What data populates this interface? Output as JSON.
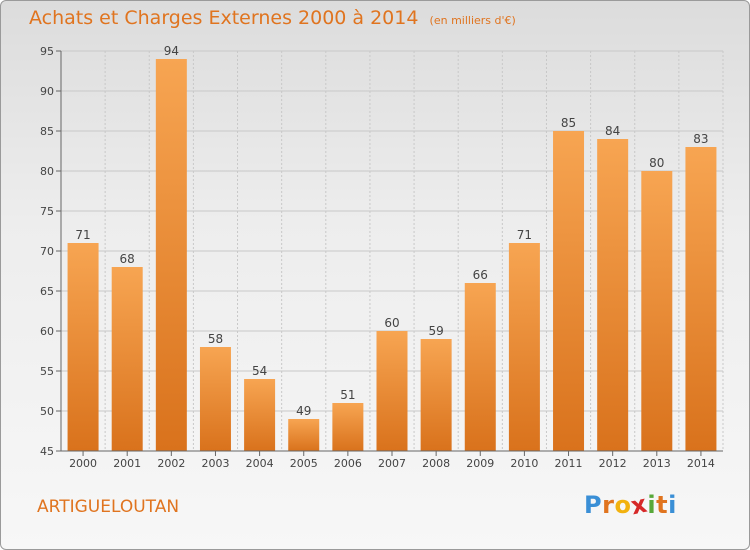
{
  "title": "Achats et Charges Externes 2000 à 2014",
  "unit": "(en milliers d'€)",
  "commune": "ARTIGUELOUTAN",
  "logo": {
    "letters": [
      "P",
      "r",
      "o",
      "x",
      "i",
      "t",
      "i"
    ],
    "colors": [
      "#3a8fd6",
      "#e0741f",
      "#f2b20f",
      "#d62828",
      "#58a83a",
      "#e0741f",
      "#3a8fd6"
    ]
  },
  "colors": {
    "bar": "#f0923a",
    "title": "#e0741f"
  },
  "chart_data": {
    "type": "bar",
    "categories": [
      "2000",
      "2001",
      "2002",
      "2003",
      "2004",
      "2005",
      "2006",
      "2007",
      "2008",
      "2009",
      "2010",
      "2011",
      "2012",
      "2013",
      "2014"
    ],
    "values": [
      71,
      68,
      94,
      58,
      54,
      49,
      51,
      60,
      59,
      66,
      71,
      85,
      84,
      80,
      83
    ],
    "ylim": [
      45,
      95
    ],
    "yticks": [
      45,
      50,
      55,
      60,
      65,
      70,
      75,
      80,
      85,
      90,
      95
    ],
    "grid": true
  }
}
